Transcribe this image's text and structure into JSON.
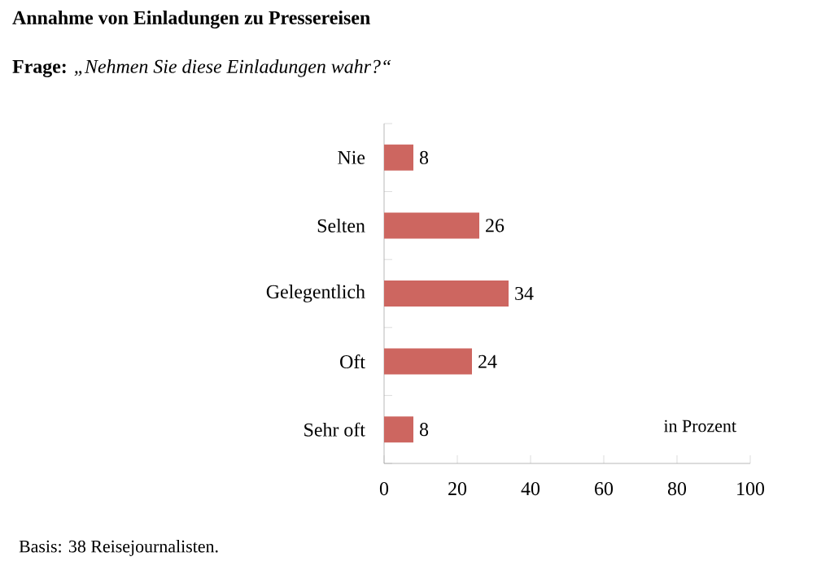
{
  "chart_data": {
    "type": "bar",
    "orientation": "horizontal",
    "title": "Annahme von Einladungen zu Pressereisen",
    "subtitle": "**Frage:** *„Nehmen Sie diese Einladungen wahr?“*",
    "categories": [
      "Nie",
      "Selten",
      "Gelegentlich",
      "Oft",
      "Sehr oft"
    ],
    "values": [
      8,
      26,
      34,
      24,
      8
    ],
    "color": "#cd6660",
    "xlim": [
      0,
      100
    ],
    "xticks": [
      0,
      20,
      40,
      60,
      80,
      100
    ],
    "data_labels": true,
    "grid": false,
    "annotations": [
      "in Prozent",
      "Basis: 38 Reisejournalisten."
    ]
  }
}
